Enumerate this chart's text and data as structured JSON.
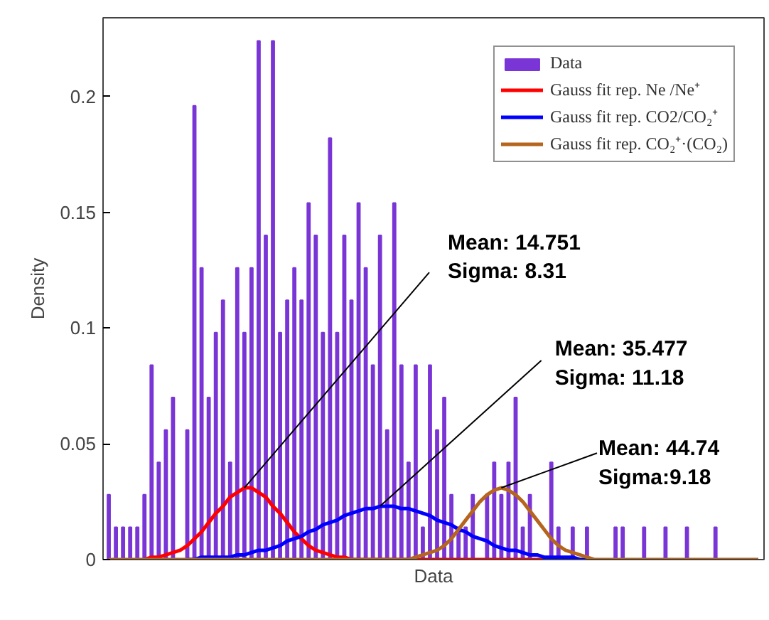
{
  "chart_data": {
    "type": "bar",
    "xlabel": "Data",
    "ylabel": "Density",
    "categories": [
      null,
      null,
      null,
      null,
      null,
      null,
      null,
      null,
      null,
      null,
      null,
      null,
      null,
      null,
      null,
      null,
      null,
      null,
      null,
      null,
      null,
      null,
      null,
      null,
      null,
      null,
      null,
      null,
      null,
      null,
      null,
      null,
      null,
      null,
      null,
      null,
      null,
      null,
      null,
      null,
      null,
      null,
      null,
      null,
      null,
      null,
      null,
      null,
      null,
      null,
      null,
      null,
      null,
      null,
      null,
      null,
      null,
      null,
      null,
      null,
      null,
      null,
      null,
      null,
      null,
      null,
      null,
      null,
      null,
      null,
      null,
      null,
      null,
      null,
      null,
      null,
      null,
      null,
      null,
      null,
      null,
      null,
      null,
      null,
      null,
      null,
      null,
      null,
      null,
      null,
      null,
      null
    ],
    "series": [
      {
        "name": "Data",
        "color": "#7a35d6",
        "values": [
          0.028,
          0.014,
          0.014,
          0.014,
          0.014,
          0.028,
          0.084,
          0.042,
          0.056,
          0.07,
          0,
          0.056,
          0.196,
          0.126,
          0.07,
          0.098,
          0.112,
          0.042,
          0.126,
          0.098,
          0.126,
          0.224,
          0.14,
          0.224,
          0.098,
          0.112,
          0.126,
          0.112,
          0.154,
          0.14,
          0.098,
          0.182,
          0.098,
          0.14,
          0.112,
          0.154,
          0.126,
          0.084,
          0.14,
          0.056,
          0.154,
          0.084,
          0.042,
          0.084,
          0.014,
          0.084,
          0.056,
          0.07,
          0.028,
          0.014,
          0.014,
          0.028,
          0,
          0.028,
          0.042,
          0.028,
          0.042,
          0.07,
          0.014,
          0.028,
          0,
          0,
          0.042,
          0.014,
          0,
          0.014,
          0,
          0.014,
          0,
          0,
          0,
          0.014,
          0.014,
          0,
          0,
          0.014,
          0,
          0,
          0.014,
          0,
          0,
          0.014,
          0,
          0,
          0,
          0.014,
          0,
          0,
          0,
          0,
          0,
          0
        ]
      },
      {
        "name": "Gauss fit rep. Ne /Ne⁺",
        "type": "line",
        "color": "#ff0000",
        "values": [
          null,
          null,
          null,
          null,
          null,
          0,
          0.001,
          0.001,
          0.002,
          0.003,
          0.004,
          0.006,
          0.009,
          0.012,
          0.016,
          0.02,
          0.023,
          0.027,
          0.029,
          0.031,
          0.031,
          0.029,
          0.027,
          0.023,
          0.02,
          0.016,
          0.012,
          0.009,
          0.006,
          0.004,
          0.003,
          0.002,
          0.001,
          0.001,
          0,
          0,
          0,
          0,
          0,
          0,
          0,
          0,
          0,
          0,
          0,
          0,
          0,
          0,
          0,
          0,
          0,
          0,
          0,
          0,
          0,
          0,
          0,
          0,
          0,
          0,
          0,
          0,
          0,
          null,
          null,
          null,
          null,
          null,
          null,
          null,
          null,
          null,
          null,
          null,
          null,
          null,
          null,
          null,
          null,
          null,
          null,
          null,
          null,
          null,
          null,
          null,
          null,
          null,
          null,
          null,
          null,
          null
        ]
      },
      {
        "name": "Gauss fit rep. CO2/CO₂⁺",
        "type": "line",
        "color": "#0000ff",
        "values": [
          null,
          null,
          null,
          null,
          null,
          null,
          null,
          null,
          null,
          null,
          null,
          0,
          0,
          0.001,
          0.001,
          0.001,
          0.001,
          0.001,
          0.002,
          0.002,
          0.003,
          0.004,
          0.004,
          0.005,
          0.006,
          0.008,
          0.009,
          0.01,
          0.012,
          0.013,
          0.015,
          0.016,
          0.017,
          0.019,
          0.02,
          0.021,
          0.022,
          0.022,
          0.023,
          0.023,
          0.023,
          0.022,
          0.022,
          0.021,
          0.02,
          0.019,
          0.017,
          0.016,
          0.015,
          0.013,
          0.012,
          0.01,
          0.009,
          0.008,
          0.006,
          0.005,
          0.004,
          0.004,
          0.003,
          0.002,
          0.002,
          0.001,
          0.001,
          0.001,
          0.001,
          0.001,
          0,
          0,
          0,
          null,
          null,
          null,
          null,
          null,
          null,
          null,
          null,
          null,
          null,
          null,
          null,
          null,
          null,
          null,
          null,
          null,
          null,
          null,
          null,
          null,
          null,
          null
        ]
      },
      {
        "name": "Gauss fit rep. CO₂⁺·(CO₂)",
        "type": "line",
        "color": "#b5651d",
        "values": [
          0,
          0,
          0,
          0,
          0,
          0,
          0,
          0,
          0,
          0,
          0,
          0,
          0,
          0,
          0,
          0,
          0,
          0,
          0,
          0,
          0,
          0,
          0,
          0,
          0,
          0,
          0,
          0,
          0,
          0,
          0,
          0,
          0,
          0,
          0,
          0,
          0,
          0,
          0,
          0,
          0,
          0,
          0,
          0.001,
          0.002,
          0.003,
          0.004,
          0.006,
          0.009,
          0.013,
          0.017,
          0.021,
          0.025,
          0.028,
          0.03,
          0.031,
          0.03,
          0.028,
          0.025,
          0.021,
          0.017,
          0.013,
          0.009,
          0.006,
          0.004,
          0.003,
          0.002,
          0.001,
          0,
          0,
          0,
          0,
          0,
          0,
          0,
          0,
          0,
          0,
          0,
          0,
          0,
          0,
          0,
          0,
          0,
          0,
          0,
          0,
          0,
          0,
          0,
          0
        ]
      }
    ],
    "ylim": [
      0,
      0.234
    ],
    "yticks": [
      0,
      0.05,
      0.1,
      0.15,
      0.2
    ],
    "tick_labels": "y",
    "legend": "top right",
    "annotations": [
      "Mean: 14.751\nSigma: 8.31",
      "Mean: 35.477\nSigma: 11.18",
      "Mean: 44.74\nSigma:9.18"
    ]
  }
}
